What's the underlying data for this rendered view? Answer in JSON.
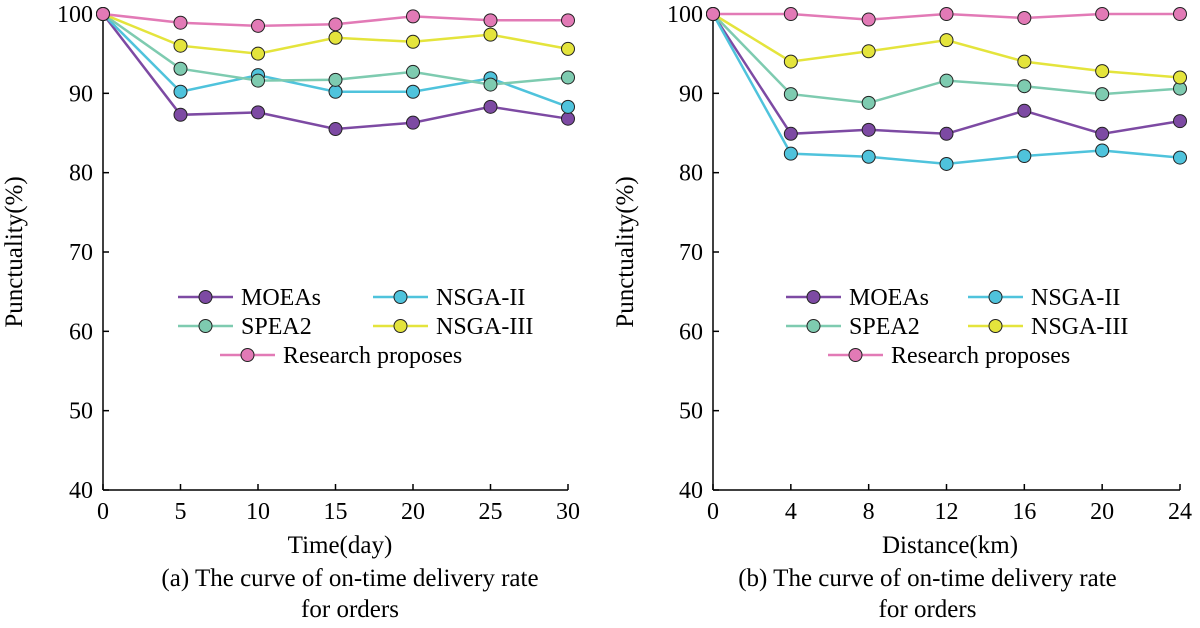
{
  "chart_data": [
    {
      "type": "line",
      "xlabel": "Time(day)",
      "ylabel": "Punctuality(%)",
      "caption_line1": "(a) The curve of on-time delivery rate",
      "caption_line2": "for orders",
      "x": [
        0,
        5,
        10,
        15,
        20,
        25,
        30
      ],
      "xlim": [
        0,
        30
      ],
      "ylim": [
        40,
        100
      ],
      "xticks": [
        0,
        5,
        10,
        15,
        20,
        25,
        30
      ],
      "yticks": [
        40,
        50,
        60,
        70,
        80,
        90,
        100
      ],
      "grid": false,
      "legend_position": "center",
      "series": [
        {
          "name": "MOEAs",
          "color": "#7d4aa3",
          "values": [
            100,
            87.3,
            87.6,
            85.5,
            86.3,
            88.3,
            86.8
          ]
        },
        {
          "name": "NSGA-II",
          "color": "#4fc3dc",
          "values": [
            100,
            90.2,
            92.3,
            90.2,
            90.2,
            91.9,
            88.3
          ]
        },
        {
          "name": "SPEA2",
          "color": "#7ecbb0",
          "values": [
            100,
            93.1,
            91.6,
            91.7,
            92.7,
            91.1,
            92.0
          ]
        },
        {
          "name": "NSGA-III",
          "color": "#e4e43c",
          "values": [
            100,
            96.0,
            95.0,
            97.0,
            96.5,
            97.4,
            95.6
          ]
        },
        {
          "name": "Research proposes",
          "color": "#e27ab6",
          "values": [
            100,
            98.9,
            98.5,
            98.7,
            99.7,
            99.2,
            99.2
          ]
        }
      ]
    },
    {
      "type": "line",
      "xlabel": "Distance(km)",
      "ylabel": "Punctuality(%)",
      "caption_line1": "(b) The curve of on-time delivery rate",
      "caption_line2": "for orders",
      "x": [
        0,
        4,
        8,
        12,
        16,
        20,
        24
      ],
      "xlim": [
        0,
        24
      ],
      "ylim": [
        40,
        100
      ],
      "xticks": [
        0,
        4,
        8,
        12,
        16,
        20,
        24
      ],
      "yticks": [
        40,
        50,
        60,
        70,
        80,
        90,
        100
      ],
      "grid": false,
      "legend_position": "center",
      "series": [
        {
          "name": "MOEAs",
          "color": "#7d4aa3",
          "values": [
            100,
            84.9,
            85.4,
            84.9,
            87.8,
            84.9,
            86.5
          ]
        },
        {
          "name": "NSGA-II",
          "color": "#4fc3dc",
          "values": [
            100,
            82.4,
            82.0,
            81.1,
            82.1,
            82.8,
            81.9
          ]
        },
        {
          "name": "SPEA2",
          "color": "#7ecbb0",
          "values": [
            100,
            89.9,
            88.8,
            91.6,
            90.9,
            89.9,
            90.6
          ]
        },
        {
          "name": "NSGA-III",
          "color": "#e4e43c",
          "values": [
            100,
            94.0,
            95.3,
            96.7,
            94.0,
            92.8,
            92.0
          ]
        },
        {
          "name": "Research proposes",
          "color": "#e27ab6",
          "values": [
            100,
            100,
            99.3,
            100,
            99.5,
            100,
            100
          ]
        }
      ]
    }
  ]
}
